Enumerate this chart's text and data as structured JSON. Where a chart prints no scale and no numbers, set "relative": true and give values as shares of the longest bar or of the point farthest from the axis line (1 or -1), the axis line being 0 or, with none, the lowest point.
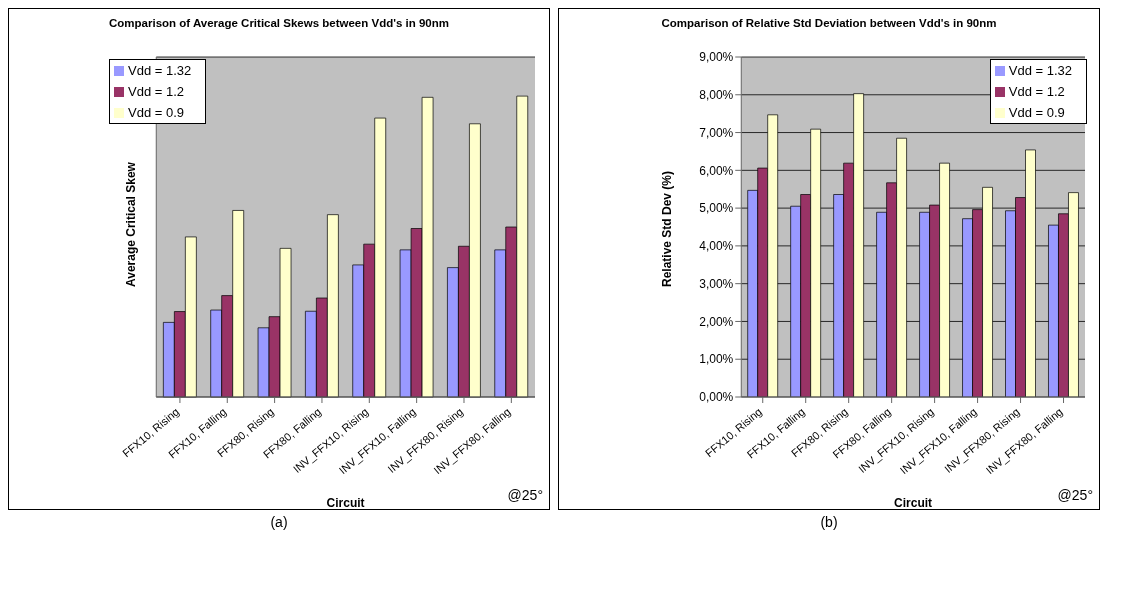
{
  "chart_data": [
    {
      "type": "bar",
      "title": "Comparison of Average Critical Skews between Vdd's in 90nm",
      "xlabel": "Circuit",
      "ylabel": "Average Critical Skew",
      "relative": true,
      "categories": [
        "FFX10, Rising",
        "FFX10, Falling",
        "FFX80, Rising",
        "FFX80, Falling",
        "INV_FFX10, Rising",
        "INV_FFX10, Falling",
        "INV_FFX80, Rising",
        "INV_FFX80, Falling"
      ],
      "series": [
        {
          "name": "Vdd = 1.32",
          "color": "#9999ff",
          "values": [
            0.248,
            0.289,
            0.23,
            0.285,
            0.439,
            0.489,
            0.43,
            0.489
          ]
        },
        {
          "name": "Vdd = 1.2",
          "color": "#993366",
          "values": [
            0.284,
            0.337,
            0.267,
            0.329,
            0.508,
            0.56,
            0.501,
            0.565
          ]
        },
        {
          "name": "Vdd = 0.9",
          "color": "#ffffcc",
          "values": [
            0.532,
            0.62,
            0.494,
            0.606,
            0.927,
            0.996,
            0.908,
            1
          ]
        }
      ],
      "grid": "y",
      "legend": "top left",
      "annotations": [
        "@25°",
        "(a)"
      ]
    },
    {
      "type": "bar",
      "title": "Comparison of Relative Std Deviation between Vdd's in 90nm",
      "xlabel": "Circuit",
      "ylabel": "Relative Std Dev (%)",
      "categories": [
        "FFX10, Rising",
        "FFX10, Falling",
        "FFX80, Rising",
        "FFX80, Falling",
        "INV_FFX10, Rising",
        "INV_FFX10, Falling",
        "INV_FFX80, Rising",
        "INV_FFX80, Falling"
      ],
      "series": [
        {
          "name": "Vdd = 1.32",
          "color": "#9999ff",
          "values": [
            5.47,
            5.05,
            5.36,
            4.89,
            4.89,
            4.72,
            4.93,
            4.55
          ]
        },
        {
          "name": "Vdd = 1.2",
          "color": "#993366",
          "values": [
            6.06,
            5.36,
            6.19,
            5.67,
            5.08,
            4.96,
            5.28,
            4.85
          ]
        },
        {
          "name": "Vdd = 0.9",
          "color": "#ffffcc",
          "values": [
            7.47,
            7.09,
            8.03,
            6.85,
            6.19,
            5.55,
            6.54,
            5.41
          ]
        }
      ],
      "ylim": [
        0,
        9
      ],
      "yticks": [
        {
          "value": 0,
          "label": "0,00%"
        },
        {
          "value": 1,
          "label": "1,00%"
        },
        {
          "value": 2,
          "label": "2,00%"
        },
        {
          "value": 3,
          "label": "3,00%"
        },
        {
          "value": 4,
          "label": "4,00%"
        },
        {
          "value": 5,
          "label": "5,00%"
        },
        {
          "value": 6,
          "label": "6,00%"
        },
        {
          "value": 7,
          "label": "7,00%"
        },
        {
          "value": 8,
          "label": "8,00%"
        },
        {
          "value": 9,
          "label": "9,00%"
        }
      ],
      "grid": "y",
      "legend": "top right",
      "annotations": [
        "@25°",
        "(b)"
      ]
    }
  ]
}
